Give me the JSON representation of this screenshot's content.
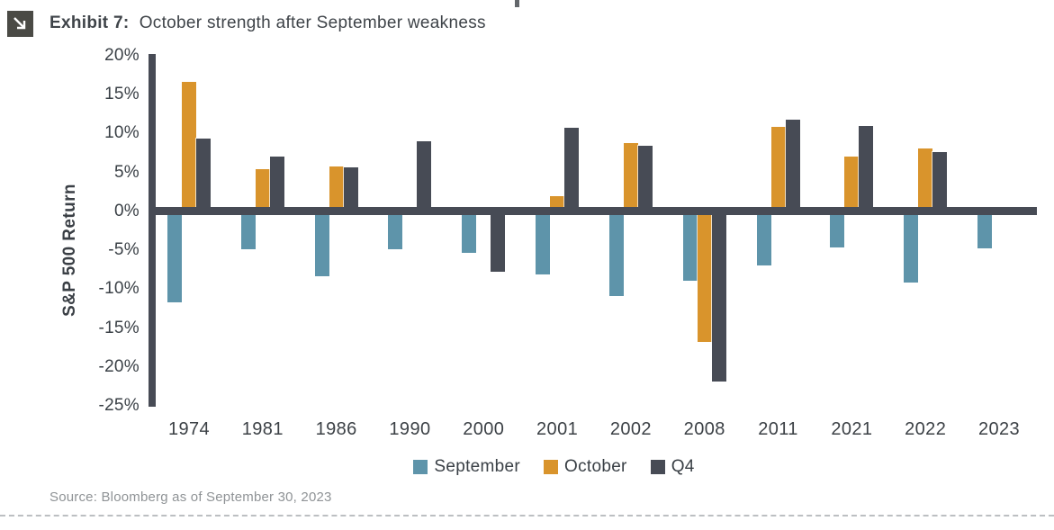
{
  "page": {
    "header": {
      "exhibit_label": "Exhibit 7:",
      "title": "October strength after September weakness"
    },
    "source": "Source: Bloomberg as of September 30, 2023"
  },
  "chart_data": {
    "type": "bar",
    "title": "Exhibit 7: October strength after September weakness",
    "xlabel": "",
    "ylabel": "S&P 500 Return",
    "ylim": [
      -25,
      20
    ],
    "grid": false,
    "legend_position": "bottom",
    "value_format": "percent",
    "axis_color": "#474B55",
    "ytick_labels": [
      "20%",
      "15%",
      "10%",
      "5%",
      "0%",
      "-5%",
      "-10%",
      "-15%",
      "-20%",
      "-25%"
    ],
    "categories": [
      "1974",
      "1981",
      "1986",
      "1990",
      "2000",
      "2001",
      "2002",
      "2008",
      "2011",
      "2021",
      "2022",
      "2023"
    ],
    "series": [
      {
        "name": "September",
        "color": "#5E94AA",
        "values": [
          -11.7,
          -4.9,
          -8.3,
          -4.9,
          -5.3,
          -8.1,
          -10.9,
          -8.9,
          -7.0,
          -4.6,
          -9.2,
          -4.8
        ]
      },
      {
        "name": "October",
        "color": "#D9942C",
        "values": [
          16.7,
          5.4,
          5.8,
          -0.4,
          -0.4,
          1.9,
          8.8,
          -16.8,
          10.9,
          7.0,
          8.1,
          null
        ]
      },
      {
        "name": "Q4",
        "color": "#474B55",
        "values": [
          9.4,
          7.0,
          5.6,
          9.0,
          -7.8,
          10.7,
          8.4,
          -21.9,
          11.8,
          11.0,
          7.6,
          null
        ]
      }
    ]
  }
}
